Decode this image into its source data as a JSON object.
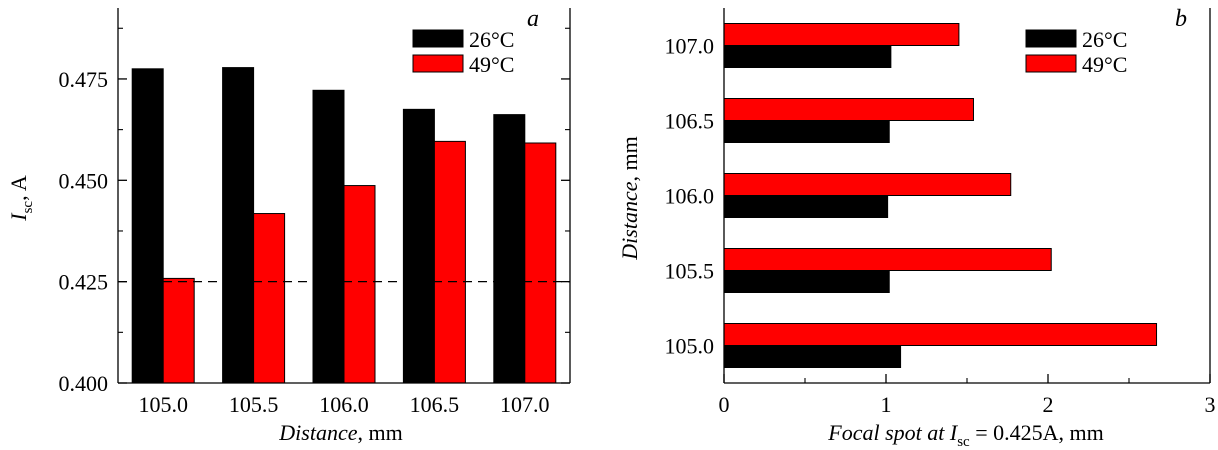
{
  "chart_data": [
    {
      "panel": "a",
      "type": "bar",
      "orientation": "vertical",
      "categories": [
        "105.0",
        "105.5",
        "106.0",
        "106.5",
        "107.0"
      ],
      "series": [
        {
          "name": "26°C",
          "color": "#000000",
          "values": [
            0.4775,
            0.4778,
            0.4722,
            0.4675,
            0.4662
          ]
        },
        {
          "name": "49°C",
          "color": "#ff0000",
          "values": [
            0.4258,
            0.4418,
            0.4487,
            0.4596,
            0.4592
          ]
        }
      ],
      "xlabel": {
        "italic": "Distance",
        "rest": ", mm"
      },
      "ylabel": {
        "main": "I",
        "sub": "sc",
        "rest": ", A"
      },
      "yticks": [
        "0.400",
        "0.425",
        "0.450",
        "0.475"
      ],
      "ylim": [
        0.4,
        0.4925
      ],
      "reference_line": {
        "value": 0.425,
        "style": "dashed"
      },
      "legend_position": "top-right"
    },
    {
      "panel": "b",
      "type": "bar",
      "orientation": "horizontal",
      "categories": [
        "105.0",
        "105.5",
        "106.0",
        "106.5",
        "107.0"
      ],
      "series": [
        {
          "name": "26°C",
          "color": "#000000",
          "values": [
            1.09,
            1.02,
            1.01,
            1.02,
            1.03
          ]
        },
        {
          "name": "49°C",
          "color": "#ff0000",
          "values": [
            2.67,
            2.02,
            1.77,
            1.54,
            1.45
          ]
        }
      ],
      "xlabel": {
        "italic": "Focal spot at ",
        "main": "I",
        "sub": "sc",
        "rest": " = 0.425A, mm"
      },
      "ylabel": {
        "italic": "Distance",
        "rest": ", mm"
      },
      "xticks": [
        "0",
        "1",
        "2",
        "3"
      ],
      "xlim": [
        0,
        3
      ],
      "legend_position": "top-right"
    }
  ]
}
